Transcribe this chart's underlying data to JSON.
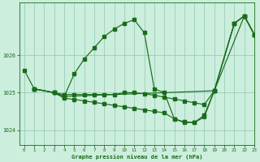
{
  "title": "Graphe pression niveau de la mer (hPa)",
  "bg_color": "#cceedd",
  "grid_color": "#99ccbb",
  "line_color": "#1a6b1a",
  "xlim": [
    -0.5,
    23
  ],
  "ylim": [
    1023.6,
    1027.4
  ],
  "yticks": [
    1024,
    1025,
    1026
  ],
  "xticks": [
    0,
    1,
    2,
    3,
    4,
    5,
    6,
    7,
    8,
    9,
    10,
    11,
    12,
    13,
    14,
    15,
    16,
    17,
    18,
    19,
    20,
    21,
    22,
    23
  ],
  "line1_x": [
    0,
    1,
    3,
    4,
    5,
    6,
    7,
    8,
    9,
    10,
    11,
    12,
    13,
    14,
    15,
    16,
    17,
    18,
    19,
    21,
    22,
    23
  ],
  "line1_y": [
    1025.6,
    1025.1,
    1025.0,
    1024.9,
    1025.5,
    1025.9,
    1026.2,
    1026.5,
    1026.7,
    1026.85,
    1026.95,
    1026.6,
    1025.1,
    1025.0,
    1024.3,
    1024.2,
    1024.2,
    1024.4,
    1025.05,
    1026.85,
    1027.05,
    1026.55
  ],
  "line2_x": [
    1,
    3,
    4,
    19,
    22,
    23
  ],
  "line2_y": [
    1025.1,
    1025.0,
    1024.9,
    1025.05,
    1027.05,
    1026.55
  ],
  "line3_x": [
    1,
    3,
    4,
    5,
    6,
    7,
    8,
    9,
    10,
    11,
    12,
    13,
    14,
    15,
    16,
    17,
    18,
    19,
    21,
    22,
    23
  ],
  "line3_y": [
    1025.1,
    1025.0,
    1024.95,
    1024.95,
    1024.95,
    1024.95,
    1024.95,
    1024.95,
    1025.0,
    1025.0,
    1024.97,
    1024.93,
    1024.88,
    1024.83,
    1024.78,
    1024.73,
    1024.68,
    1025.05,
    1026.85,
    1027.05,
    1026.55
  ],
  "line4_x": [
    1,
    3,
    4,
    5,
    6,
    7,
    8,
    9,
    10,
    11,
    12,
    13,
    14,
    15,
    16,
    17,
    18,
    19,
    21,
    22,
    23
  ],
  "line4_y": [
    1025.1,
    1025.0,
    1024.85,
    1024.82,
    1024.78,
    1024.74,
    1024.7,
    1024.66,
    1024.62,
    1024.58,
    1024.54,
    1024.5,
    1024.46,
    1024.3,
    1024.22,
    1024.2,
    1024.35,
    1025.05,
    1026.85,
    1027.05,
    1026.55
  ]
}
